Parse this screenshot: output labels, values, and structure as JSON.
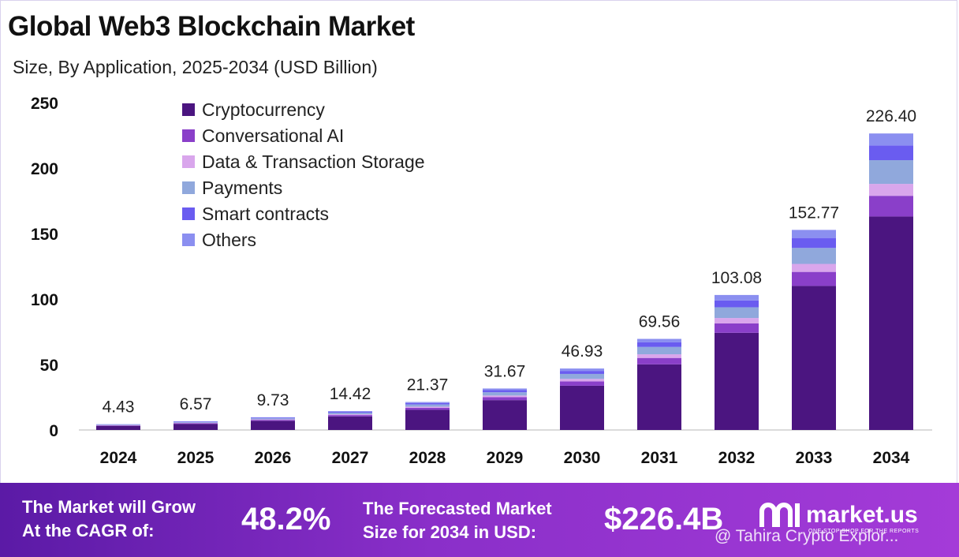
{
  "title": "Global Web3 Blockchain Market",
  "subtitle": "Size, By Application, 2025-2034 (USD Billion)",
  "chart_data": {
    "type": "bar",
    "stacked": true,
    "categories": [
      "2024",
      "2025",
      "2026",
      "2027",
      "2028",
      "2029",
      "2030",
      "2031",
      "2032",
      "2033",
      "2034"
    ],
    "totals": [
      4.43,
      6.57,
      9.73,
      14.42,
      21.37,
      31.67,
      46.93,
      69.56,
      103.08,
      152.77,
      226.4
    ],
    "total_labels": [
      "4.43",
      "6.57",
      "9.73",
      "14.42",
      "21.37",
      "31.67",
      "46.93",
      "69.56",
      "103.08",
      "152.77",
      "226.40"
    ],
    "series": [
      {
        "name": "Cryptocurrency",
        "color": "#4b1580",
        "values": [
          3.2,
          4.7,
          7.0,
          10.4,
          15.4,
          22.8,
          33.8,
          50.1,
          74.2,
          110.0,
          163.0
        ]
      },
      {
        "name": "Conversational AI",
        "color": "#8a3fc9",
        "values": [
          0.3,
          0.5,
          0.7,
          1.0,
          1.5,
          2.2,
          3.3,
          4.9,
          7.2,
          10.7,
          15.8
        ]
      },
      {
        "name": "Data & Transaction Storage",
        "color": "#d9a6ec",
        "values": [
          0.2,
          0.3,
          0.4,
          0.6,
          0.9,
          1.3,
          1.9,
          2.8,
          4.1,
          6.1,
          9.1
        ]
      },
      {
        "name": "Payments",
        "color": "#90a8dc",
        "values": [
          0.4,
          0.5,
          0.8,
          1.2,
          1.7,
          2.5,
          3.8,
          5.6,
          8.2,
          12.2,
          18.1
        ]
      },
      {
        "name": "Smart contracts",
        "color": "#6a5cf0",
        "values": [
          0.2,
          0.35,
          0.5,
          0.7,
          1.1,
          1.6,
          2.3,
          3.5,
          5.2,
          7.6,
          11.3
        ]
      },
      {
        "name": "Others",
        "color": "#8b8ff0",
        "values": [
          0.13,
          0.22,
          0.33,
          0.52,
          0.77,
          1.27,
          1.83,
          2.66,
          4.18,
          6.17,
          9.1
        ]
      }
    ],
    "ylim": [
      0,
      250
    ],
    "yticks": [
      "0",
      "50",
      "100",
      "150",
      "200",
      "250"
    ],
    "legend_position": "top-left",
    "grid": false
  },
  "footer": {
    "cagr_label_line1": "The Market will Grow",
    "cagr_label_line2": "At the CAGR of:",
    "cagr_value": "48.2%",
    "forecast_label_line1": "The Forecasted Market",
    "forecast_label_line2": "Size for 2034 in USD:",
    "forecast_value": "$226.4B",
    "brand_name": "market.us",
    "brand_tagline": "ONE STOP SHOP FOR THE REPORTS",
    "watermark": "@ Tahira Crypto Explor..."
  }
}
